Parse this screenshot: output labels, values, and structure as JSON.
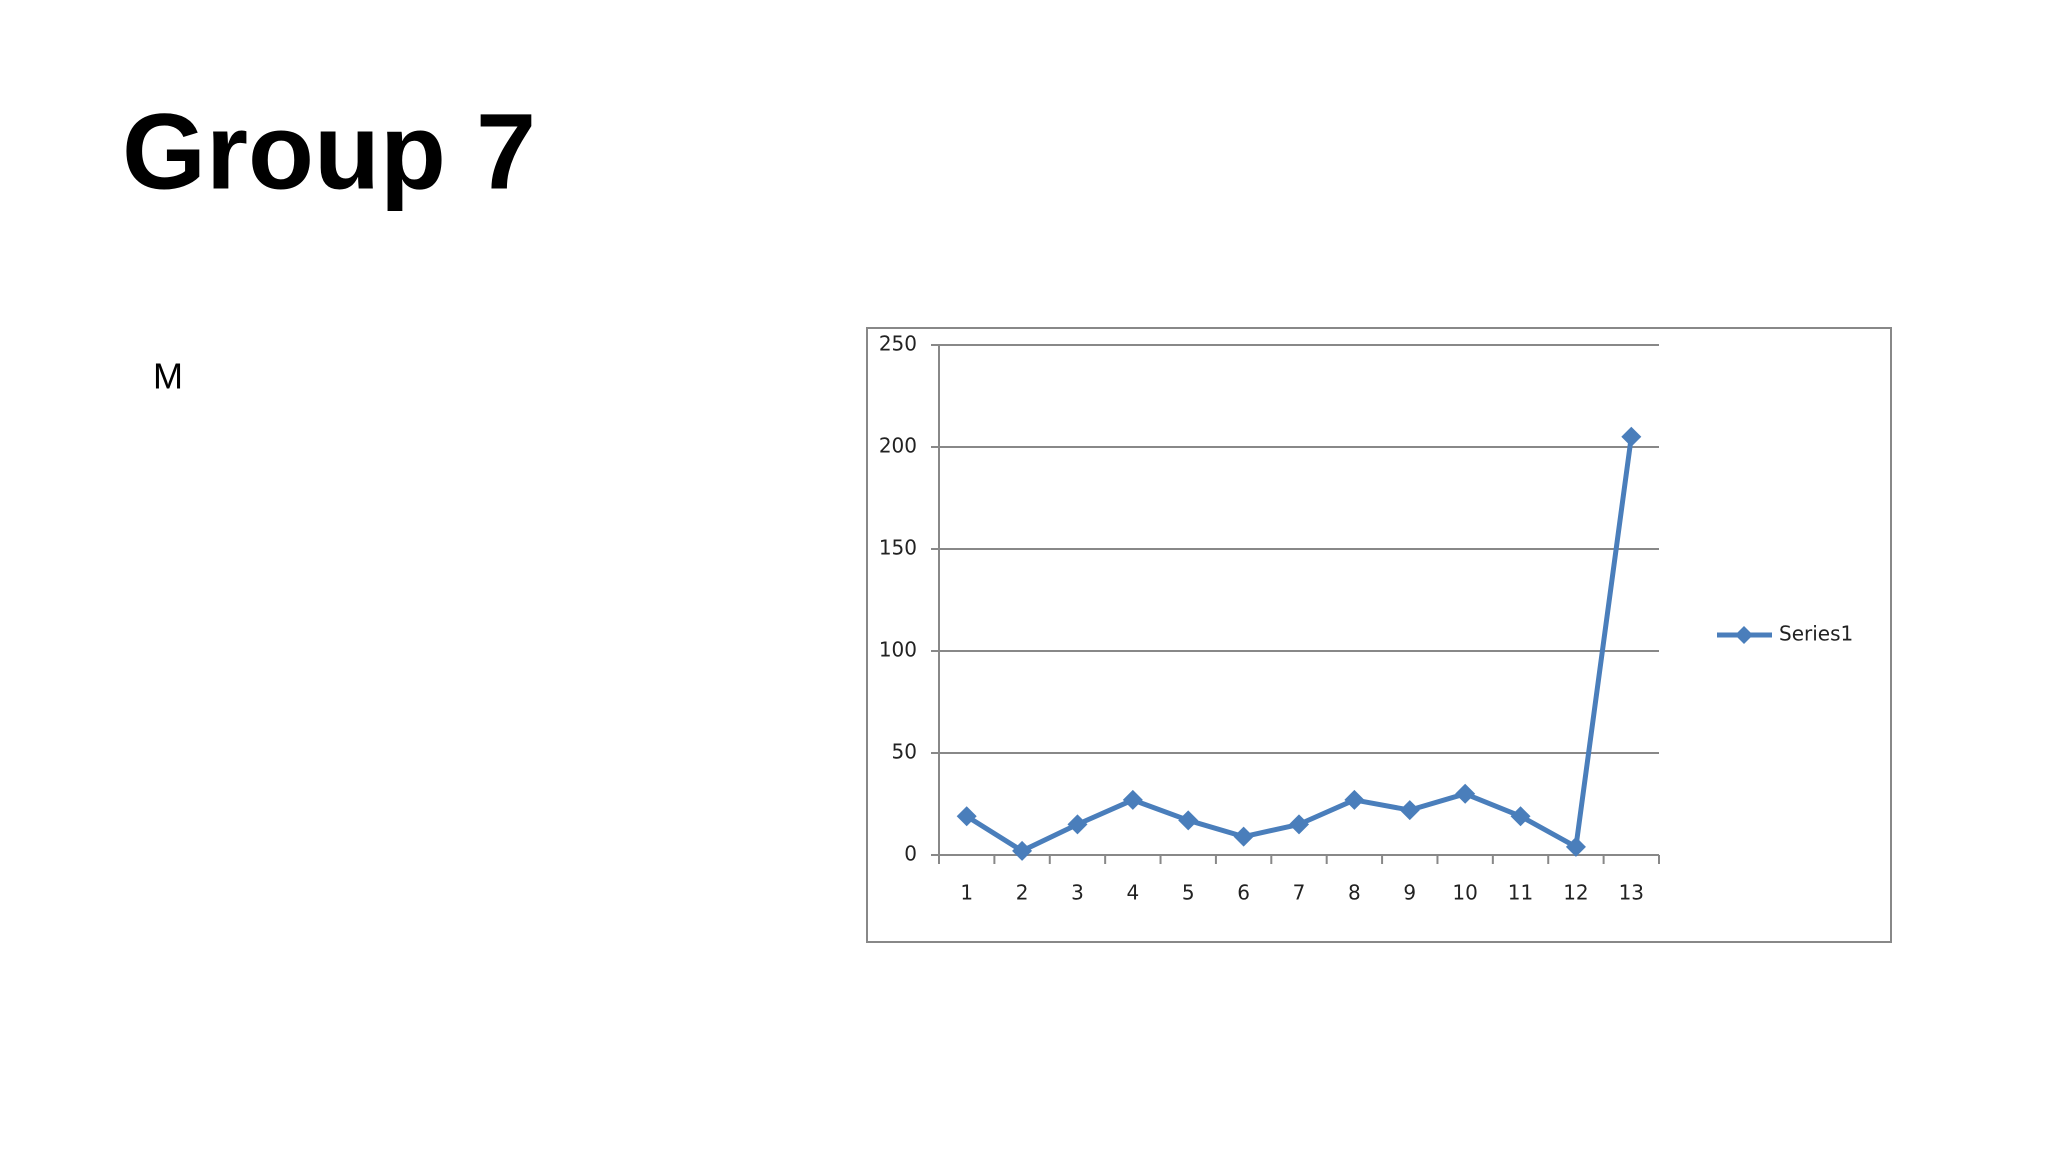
{
  "slide": {
    "title": "Group 7",
    "body": "M"
  },
  "chart_data": {
    "type": "line",
    "categories": [
      "1",
      "2",
      "3",
      "4",
      "5",
      "6",
      "7",
      "8",
      "9",
      "10",
      "11",
      "12",
      "13"
    ],
    "series": [
      {
        "name": "Series1",
        "color": "#4a7ebb",
        "values": [
          19,
          2,
          15,
          27,
          17,
          9,
          15,
          27,
          22,
          30,
          19,
          4,
          205
        ]
      }
    ],
    "ylim": [
      0,
      250
    ],
    "yticks": [
      0,
      50,
      100,
      150,
      200,
      250
    ],
    "grid": true,
    "legend": "right"
  }
}
